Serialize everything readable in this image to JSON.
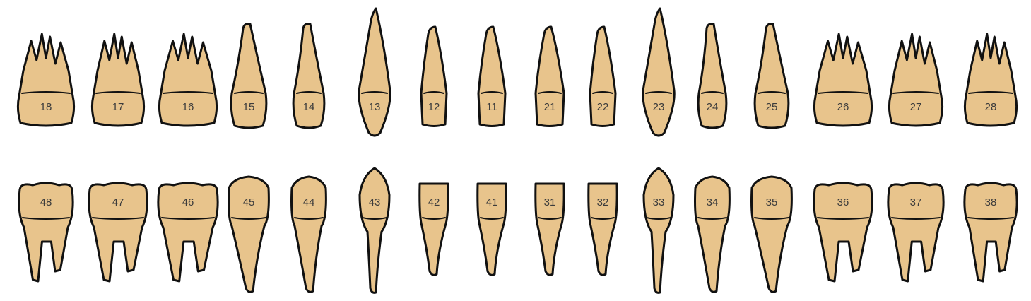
{
  "colors": {
    "tooth_fill": "#e8c48c",
    "tooth_stroke": "#111111",
    "number_text": "#3c3c3c"
  },
  "upper_arch": [
    {
      "number": "18",
      "type": "molar"
    },
    {
      "number": "17",
      "type": "molar"
    },
    {
      "number": "16",
      "type": "molar"
    },
    {
      "number": "15",
      "type": "premolar"
    },
    {
      "number": "14",
      "type": "premolar"
    },
    {
      "number": "13",
      "type": "canine"
    },
    {
      "number": "12",
      "type": "incisor"
    },
    {
      "number": "11",
      "type": "incisor"
    },
    {
      "number": "21",
      "type": "incisor"
    },
    {
      "number": "22",
      "type": "incisor"
    },
    {
      "number": "23",
      "type": "canine"
    },
    {
      "number": "24",
      "type": "premolar"
    },
    {
      "number": "25",
      "type": "premolar"
    },
    {
      "number": "26",
      "type": "molar"
    },
    {
      "number": "27",
      "type": "molar"
    },
    {
      "number": "28",
      "type": "molar"
    }
  ],
  "lower_arch": [
    {
      "number": "48",
      "type": "molar"
    },
    {
      "number": "47",
      "type": "molar"
    },
    {
      "number": "46",
      "type": "molar"
    },
    {
      "number": "45",
      "type": "premolar"
    },
    {
      "number": "44",
      "type": "premolar"
    },
    {
      "number": "43",
      "type": "canine"
    },
    {
      "number": "42",
      "type": "incisor"
    },
    {
      "number": "41",
      "type": "incisor"
    },
    {
      "number": "31",
      "type": "incisor"
    },
    {
      "number": "32",
      "type": "incisor"
    },
    {
      "number": "33",
      "type": "canine"
    },
    {
      "number": "34",
      "type": "premolar"
    },
    {
      "number": "35",
      "type": "premolar"
    },
    {
      "number": "36",
      "type": "molar"
    },
    {
      "number": "37",
      "type": "molar"
    },
    {
      "number": "38",
      "type": "molar"
    }
  ]
}
